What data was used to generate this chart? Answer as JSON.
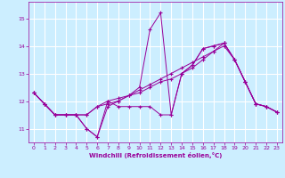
{
  "xlabel": "Windchill (Refroidissement éolien,°C)",
  "bg_color": "#cceeff",
  "grid_color": "#ffffff",
  "line_color": "#990099",
  "xlim": [
    -0.5,
    23.5
  ],
  "ylim": [
    10.5,
    15.6
  ],
  "yticks": [
    11,
    12,
    13,
    14,
    15
  ],
  "xticks": [
    0,
    1,
    2,
    3,
    4,
    5,
    6,
    7,
    8,
    9,
    10,
    11,
    12,
    13,
    14,
    15,
    16,
    17,
    18,
    19,
    20,
    21,
    22,
    23
  ],
  "series": [
    {
      "x": [
        0,
        1,
        2,
        3,
        4,
        5,
        6,
        7,
        8,
        9,
        10,
        11,
        12,
        13,
        14,
        15,
        16,
        17,
        18,
        19,
        20,
        21,
        22,
        23
      ],
      "y": [
        12.3,
        11.9,
        11.5,
        11.5,
        11.5,
        11.0,
        10.7,
        11.8,
        12.0,
        12.2,
        12.5,
        14.6,
        15.2,
        11.5,
        13.0,
        13.3,
        13.9,
        14.0,
        14.1,
        13.5,
        12.7,
        11.9,
        11.8,
        11.6
      ]
    },
    {
      "x": [
        0,
        1,
        2,
        3,
        4,
        5,
        6,
        7,
        8,
        9,
        10,
        11,
        12,
        13,
        14,
        15,
        16,
        17,
        18,
        19,
        20,
        21,
        22,
        23
      ],
      "y": [
        12.3,
        11.9,
        11.5,
        11.5,
        11.5,
        11.5,
        11.8,
        11.9,
        12.0,
        12.2,
        12.4,
        12.6,
        12.8,
        13.0,
        13.2,
        13.4,
        13.6,
        13.8,
        14.0,
        13.5,
        12.7,
        11.9,
        11.8,
        11.6
      ]
    },
    {
      "x": [
        0,
        1,
        2,
        3,
        4,
        5,
        6,
        7,
        8,
        9,
        10,
        11,
        12,
        13,
        14,
        15,
        16,
        17,
        18,
        19,
        20,
        21,
        22,
        23
      ],
      "y": [
        12.3,
        11.9,
        11.5,
        11.5,
        11.5,
        11.0,
        10.7,
        12.0,
        11.8,
        11.8,
        11.8,
        11.8,
        11.5,
        11.5,
        13.0,
        13.3,
        13.9,
        14.0,
        14.1,
        13.5,
        12.7,
        11.9,
        11.8,
        11.6
      ]
    },
    {
      "x": [
        0,
        1,
        2,
        3,
        4,
        5,
        6,
        7,
        8,
        9,
        10,
        11,
        12,
        13,
        14,
        15,
        16,
        17,
        18,
        19,
        20,
        21,
        22,
        23
      ],
      "y": [
        12.3,
        11.9,
        11.5,
        11.5,
        11.5,
        11.5,
        11.8,
        12.0,
        12.1,
        12.2,
        12.3,
        12.5,
        12.7,
        12.8,
        13.0,
        13.2,
        13.5,
        13.8,
        14.1,
        13.5,
        12.7,
        11.9,
        11.8,
        11.6
      ]
    }
  ]
}
